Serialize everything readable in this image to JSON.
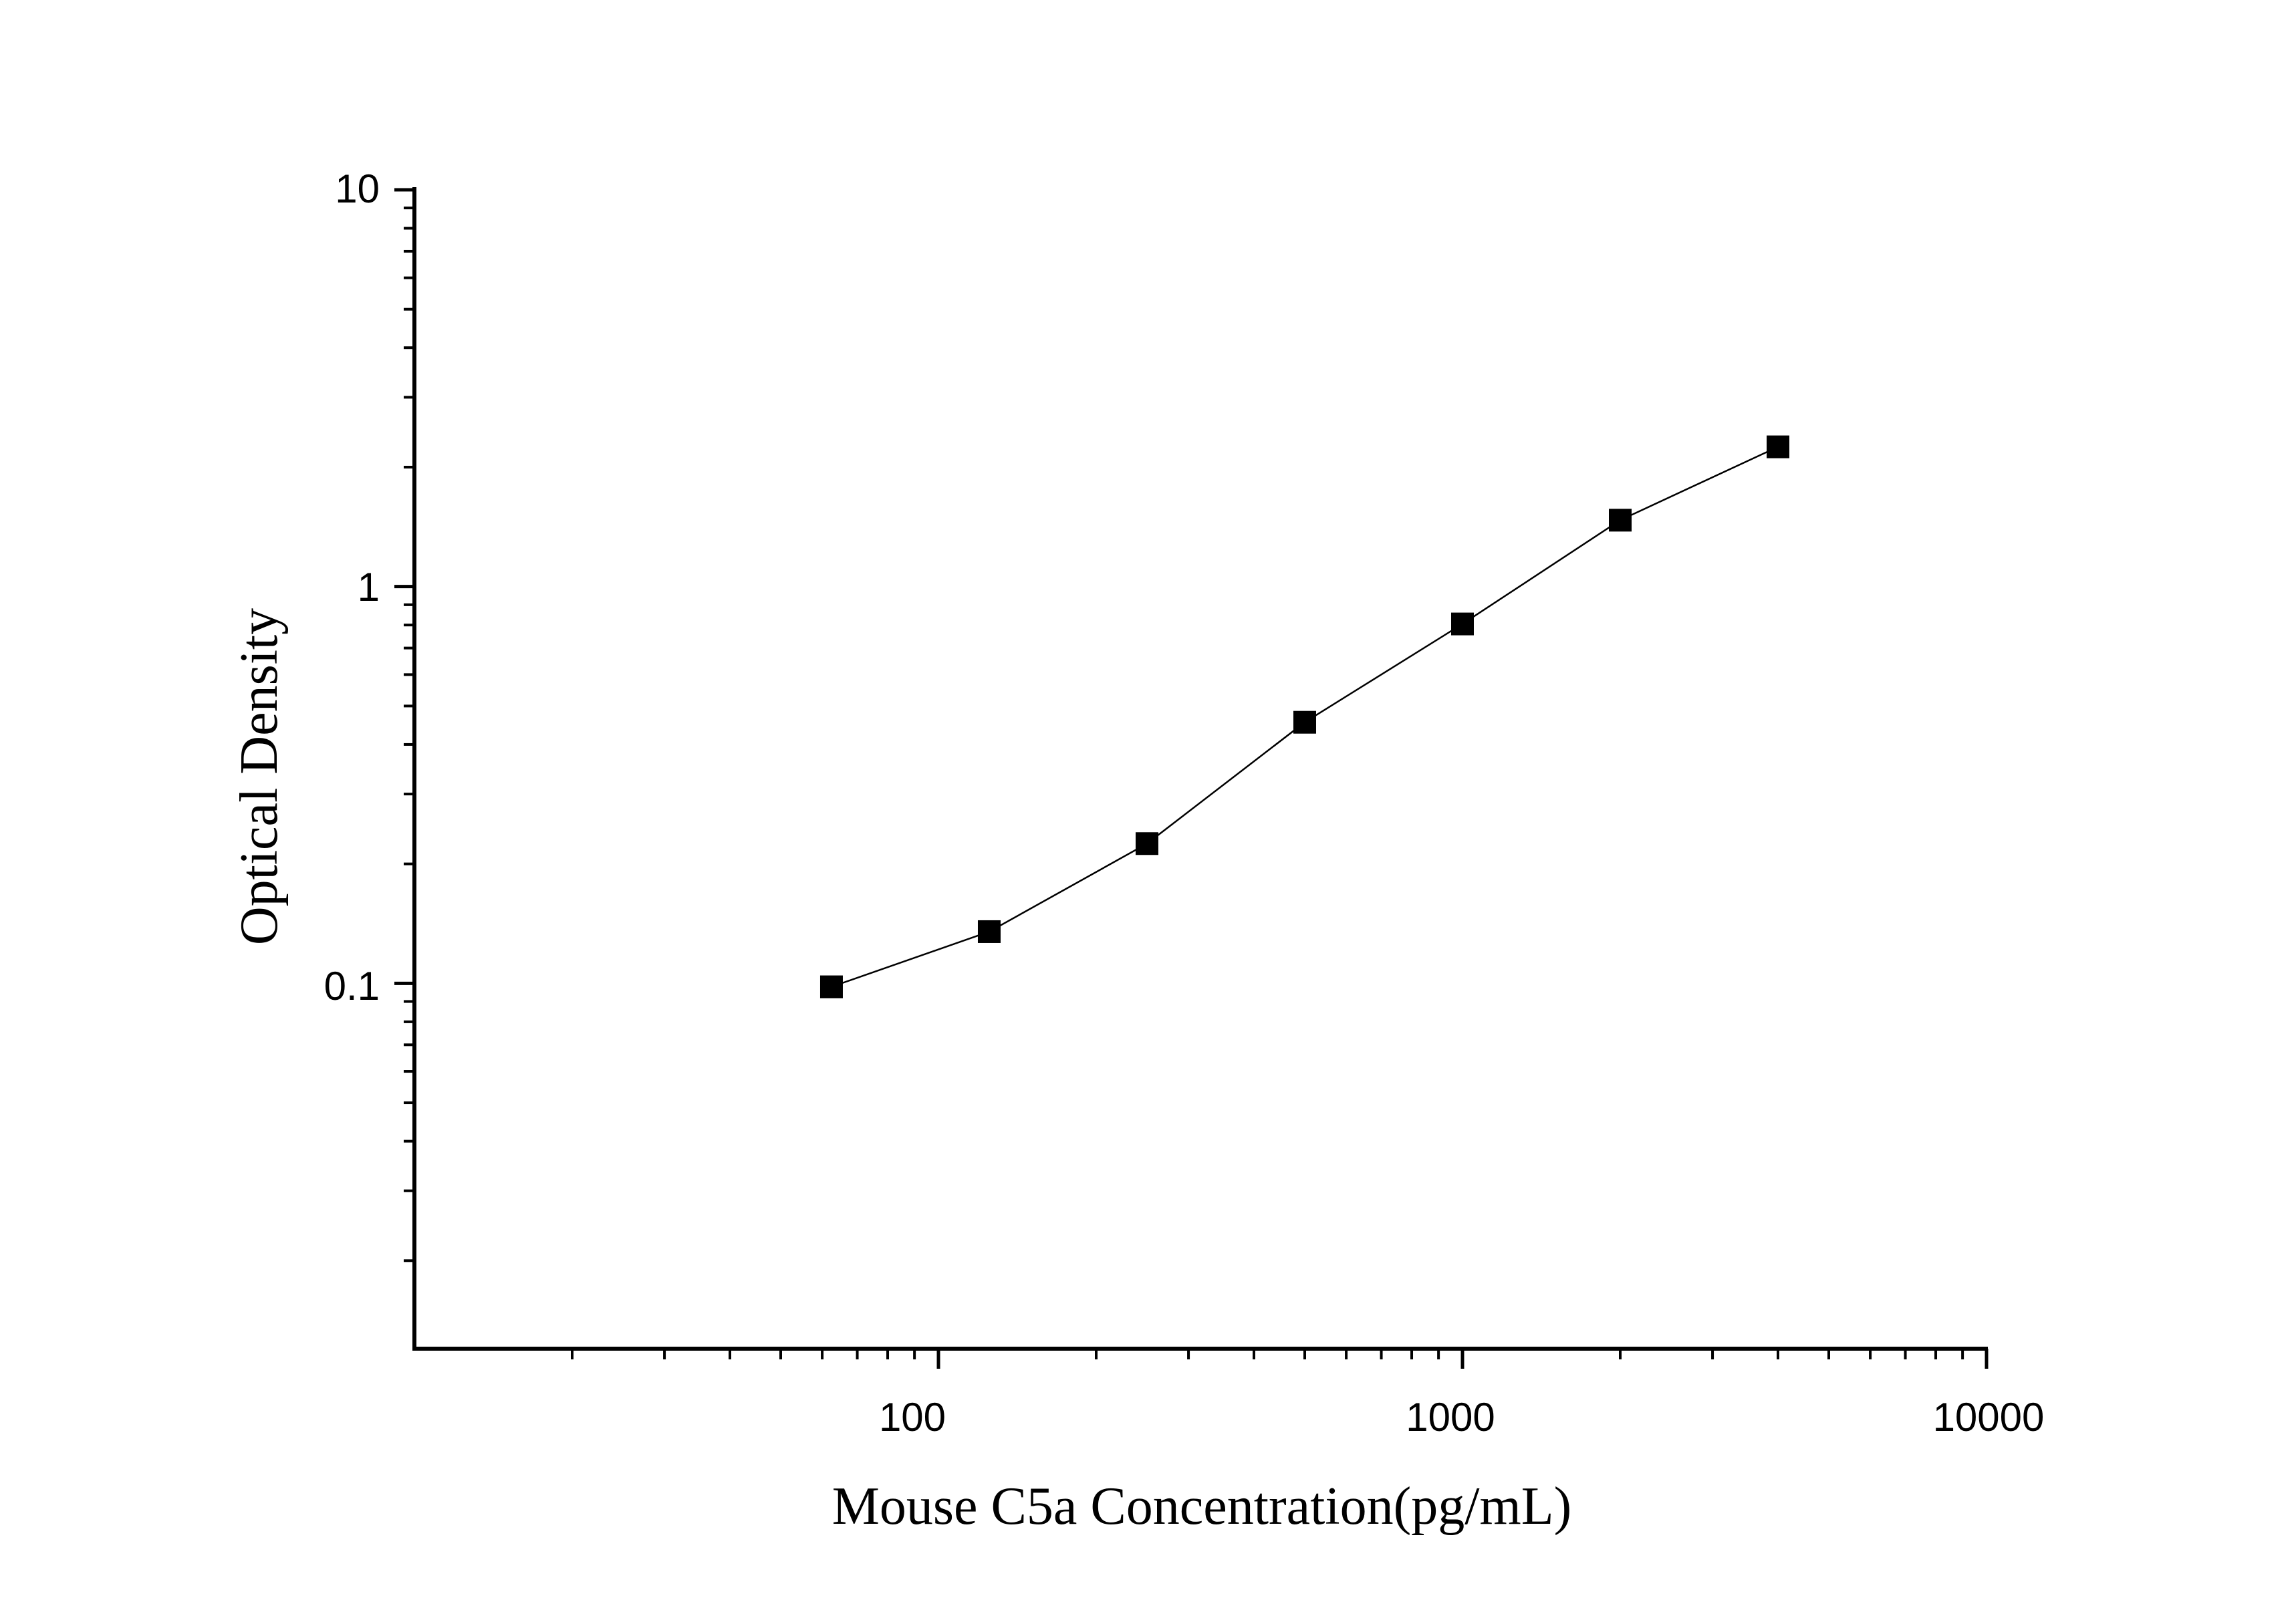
{
  "chart_data": {
    "type": "line",
    "title": "",
    "xlabel": "Mouse C5a Concentration(pg/mL)",
    "ylabel": "Optical Density",
    "x_scale": "log",
    "y_scale": "log",
    "xlim": [
      10,
      10000
    ],
    "ylim": [
      0.012,
      10
    ],
    "x_tick_labels": [
      "100",
      "1000",
      "10000"
    ],
    "y_tick_labels": [
      "10",
      "1",
      "0.1"
    ],
    "grid": false,
    "legend": "none",
    "marker": "square",
    "color": "#000000",
    "series": [
      {
        "x": [
          62.5,
          125,
          250,
          500,
          1000,
          2000,
          4000
        ],
        "y": [
          0.098,
          0.135,
          0.225,
          0.455,
          0.805,
          1.47,
          2.25
        ]
      }
    ]
  }
}
